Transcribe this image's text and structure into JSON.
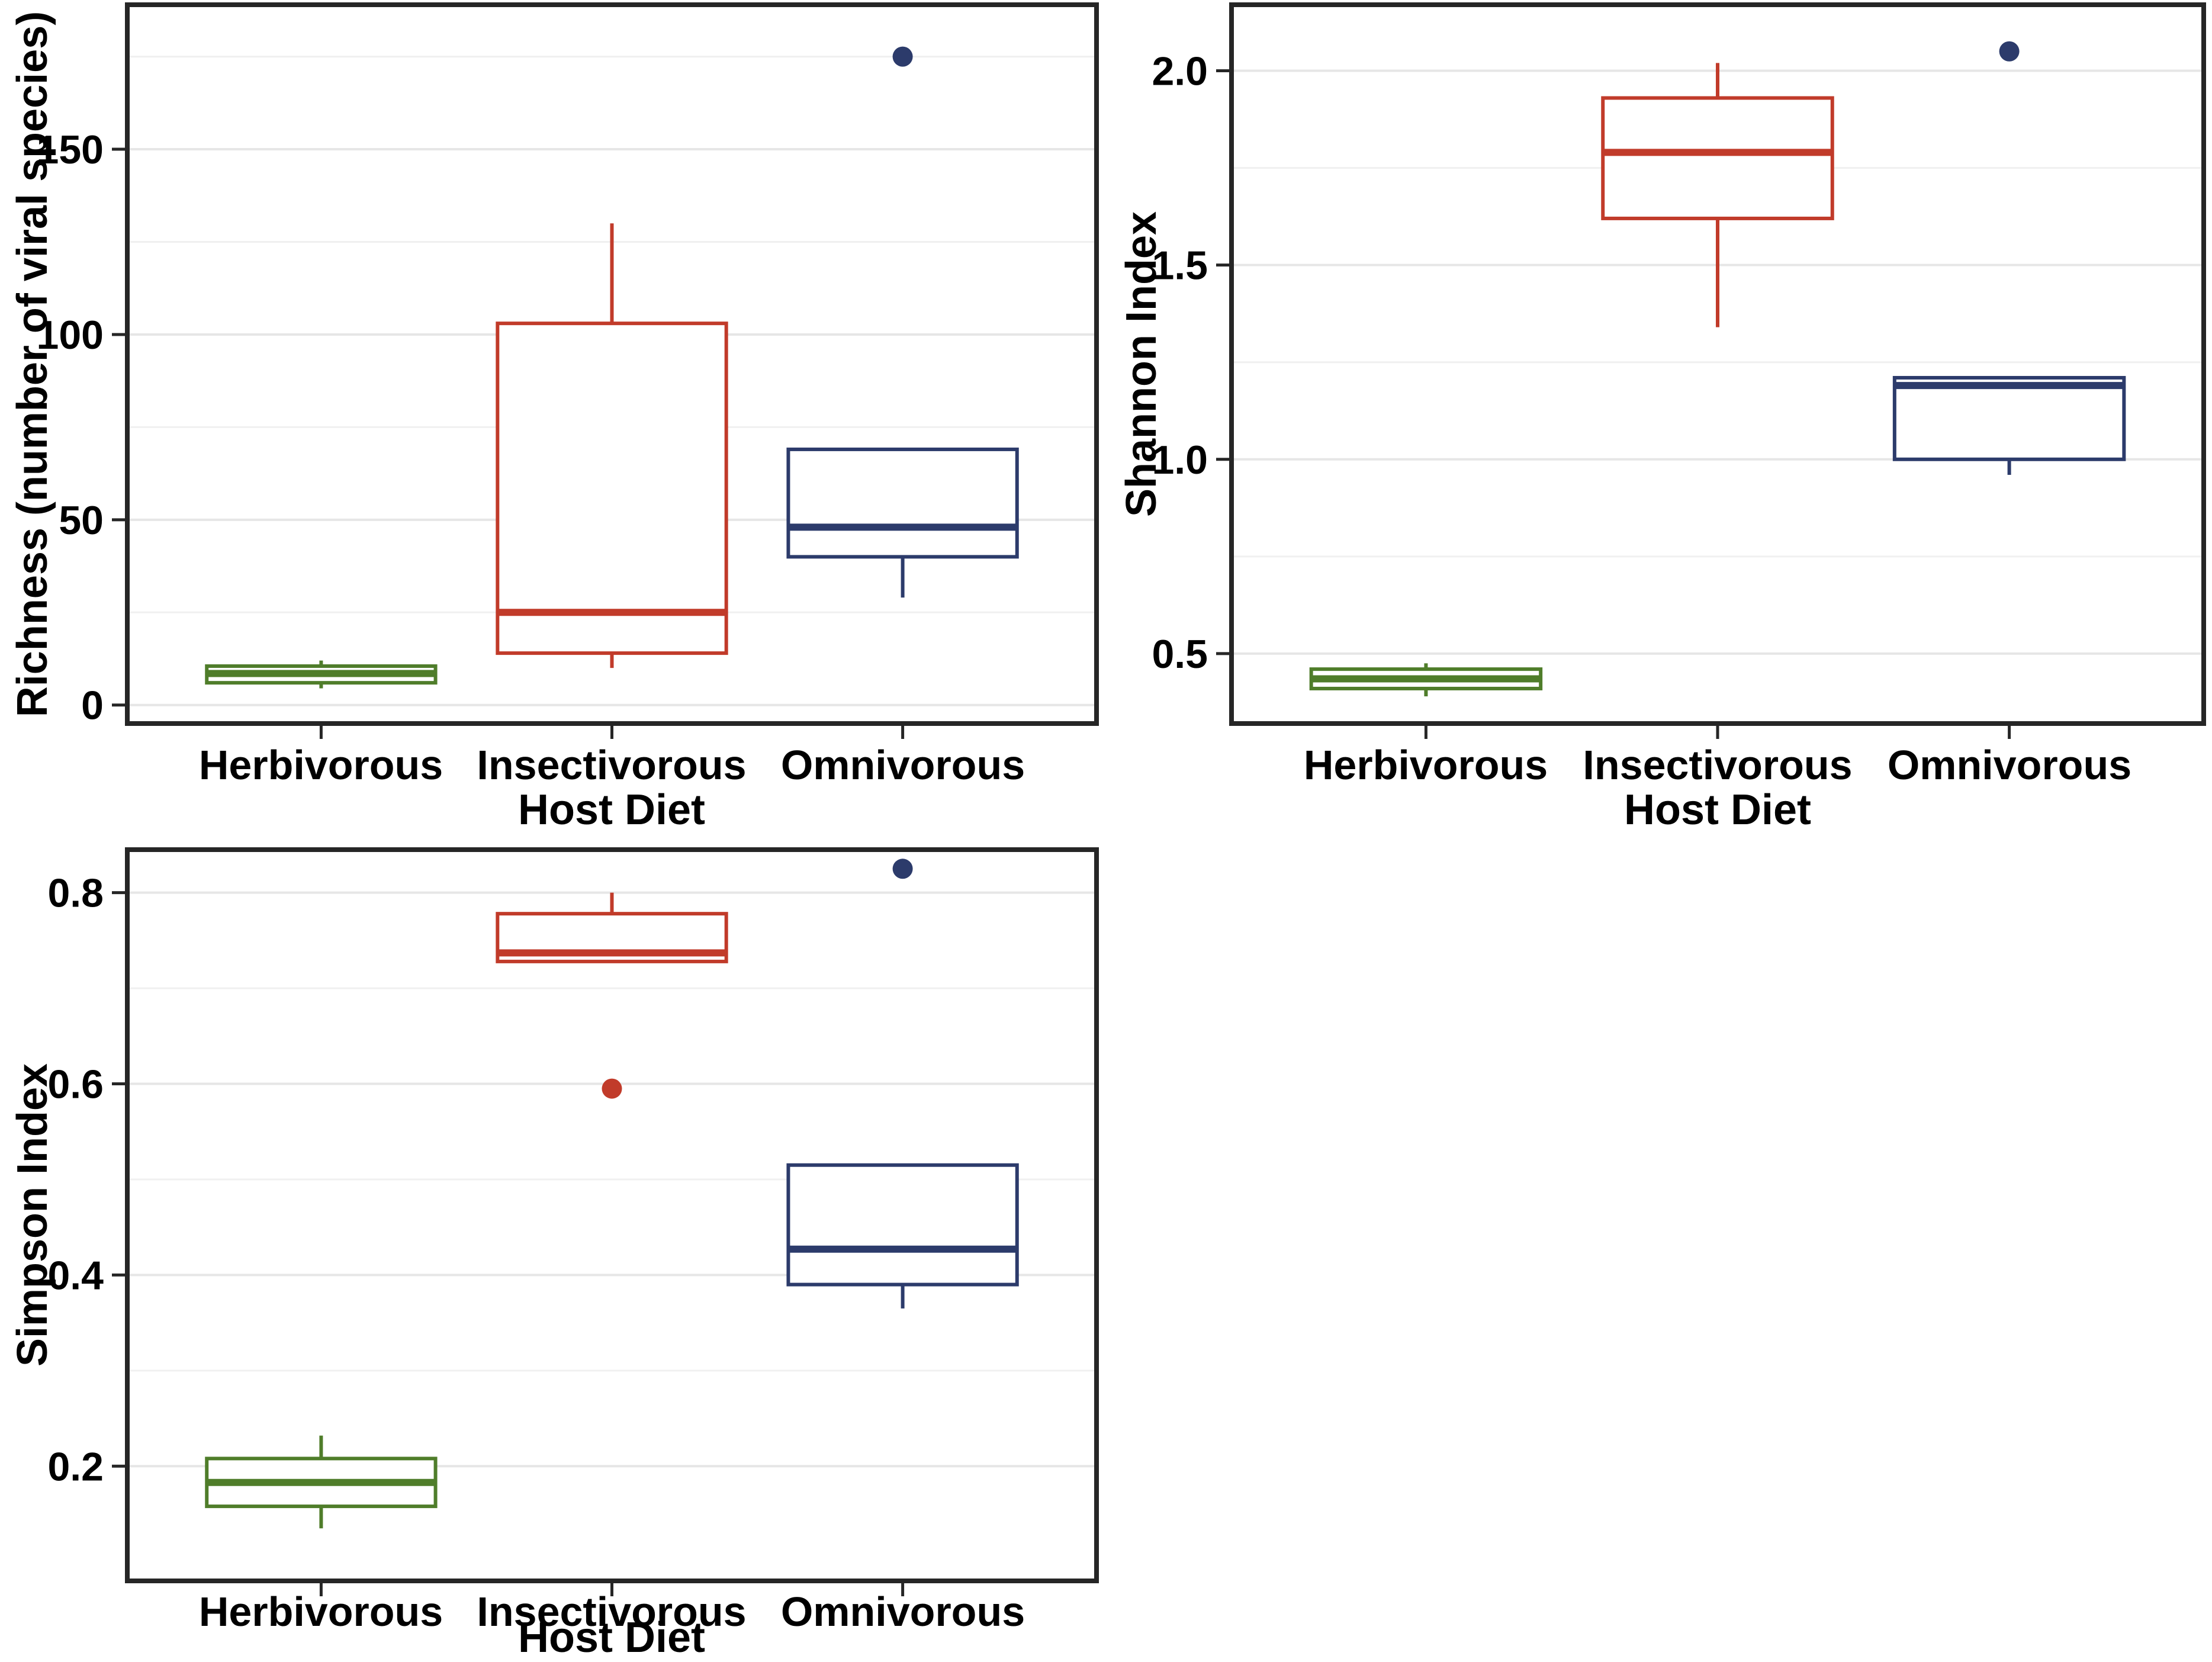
{
  "figure": {
    "background": "#ffffff",
    "x_axis_title": "Host Diet",
    "categories": [
      "Herbivorous",
      "Insectivorous",
      "Omnivorous"
    ],
    "colors": {
      "herbivorous": "#4f7d2a",
      "insectivorous": "#c13b2a",
      "omnivorous": "#2c3b6b",
      "grid_major": "#e6e6e6",
      "grid_minor": "#f0f0f0",
      "panel_border": "#262626",
      "tick": "#262626",
      "text": "#000000"
    }
  },
  "chart_data": [
    {
      "id": "richness",
      "type": "box",
      "position": "top-left",
      "ylabel": "Richness (number of viral species)",
      "xlabel": "Host Diet",
      "categories": [
        "Herbivorous",
        "Insectivorous",
        "Omnivorous"
      ],
      "ytick_values": [
        0,
        50,
        100,
        150
      ],
      "ytick_labels": [
        "0",
        "50",
        "100",
        "150"
      ],
      "minor_gridlines": [
        25,
        75,
        125,
        175
      ],
      "ylim": [
        -5,
        189
      ],
      "grid": true,
      "legend": "none",
      "series": [
        {
          "category": "Herbivorous",
          "color_key": "herbivorous",
          "whisker_low": 4.5,
          "q1": 6,
          "median": 8.5,
          "q3": 10.5,
          "whisker_high": 12,
          "outliers": []
        },
        {
          "category": "Insectivorous",
          "color_key": "insectivorous",
          "whisker_low": 10,
          "q1": 14,
          "median": 25,
          "q3": 103,
          "whisker_high": 130,
          "outliers": []
        },
        {
          "category": "Omnivorous",
          "color_key": "omnivorous",
          "whisker_low": 29,
          "q1": 40,
          "median": 48,
          "q3": 69,
          "whisker_high": 69,
          "outliers": [
            175
          ]
        }
      ]
    },
    {
      "id": "shannon",
      "type": "box",
      "position": "top-right",
      "ylabel": "Shannon Index",
      "xlabel": "Host Diet",
      "categories": [
        "Herbivorous",
        "Insectivorous",
        "Omnivorous"
      ],
      "ytick_values": [
        0.5,
        1.0,
        1.5,
        2.0
      ],
      "ytick_labels": [
        "0.5",
        "1.0",
        "1.5",
        "2.0"
      ],
      "minor_gridlines": [
        0.75,
        1.25,
        1.75
      ],
      "ylim": [
        0.32,
        2.17
      ],
      "grid": true,
      "legend": "none",
      "series": [
        {
          "category": "Herbivorous",
          "color_key": "herbivorous",
          "whisker_low": 0.39,
          "q1": 0.41,
          "median": 0.435,
          "q3": 0.46,
          "whisker_high": 0.475,
          "outliers": []
        },
        {
          "category": "Insectivorous",
          "color_key": "insectivorous",
          "whisker_low": 1.34,
          "q1": 1.62,
          "median": 1.79,
          "q3": 1.93,
          "whisker_high": 2.02,
          "outliers": []
        },
        {
          "category": "Omnivorous",
          "color_key": "omnivorous",
          "whisker_low": 0.96,
          "q1": 1.0,
          "median": 1.19,
          "q3": 1.21,
          "whisker_high": 1.21,
          "outliers": [
            2.05
          ]
        }
      ]
    },
    {
      "id": "simpson",
      "type": "box",
      "position": "bottom-left",
      "ylabel": "Simpson Index",
      "xlabel": "Host Diet",
      "categories": [
        "Herbivorous",
        "Insectivorous",
        "Omnivorous"
      ],
      "ytick_values": [
        0.2,
        0.4,
        0.6,
        0.8
      ],
      "ytick_labels": [
        "0.2",
        "0.4",
        "0.6",
        "0.8"
      ],
      "minor_gridlines": [
        0.3,
        0.5,
        0.7
      ],
      "ylim": [
        0.08,
        0.845
      ],
      "grid": true,
      "legend": "none",
      "series": [
        {
          "category": "Herbivorous",
          "color_key": "herbivorous",
          "whisker_low": 0.135,
          "q1": 0.158,
          "median": 0.183,
          "q3": 0.208,
          "whisker_high": 0.232,
          "outliers": []
        },
        {
          "category": "Insectivorous",
          "color_key": "insectivorous",
          "whisker_low": 0.728,
          "q1": 0.728,
          "median": 0.737,
          "q3": 0.778,
          "whisker_high": 0.8,
          "outliers": [
            0.595
          ]
        },
        {
          "category": "Omnivorous",
          "color_key": "omnivorous",
          "whisker_low": 0.365,
          "q1": 0.39,
          "median": 0.427,
          "q3": 0.515,
          "whisker_high": 0.515,
          "outliers": [
            0.825
          ]
        }
      ]
    }
  ]
}
